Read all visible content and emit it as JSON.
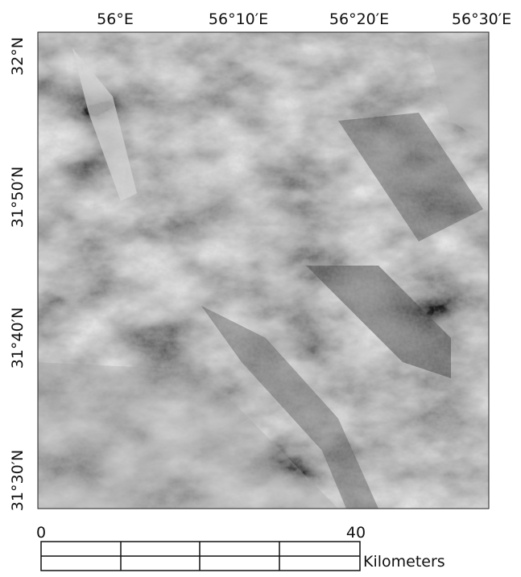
{
  "map": {
    "longitude_labels": [
      "56°E",
      "56°10′E",
      "56°20′E",
      "56°30′E"
    ],
    "latitude_labels": [
      "32°N",
      "31°50′N",
      "31°40′N",
      "31°30′N"
    ],
    "scale_bar": {
      "start_label": "0",
      "end_label": "40",
      "unit": "Kilometers"
    }
  }
}
